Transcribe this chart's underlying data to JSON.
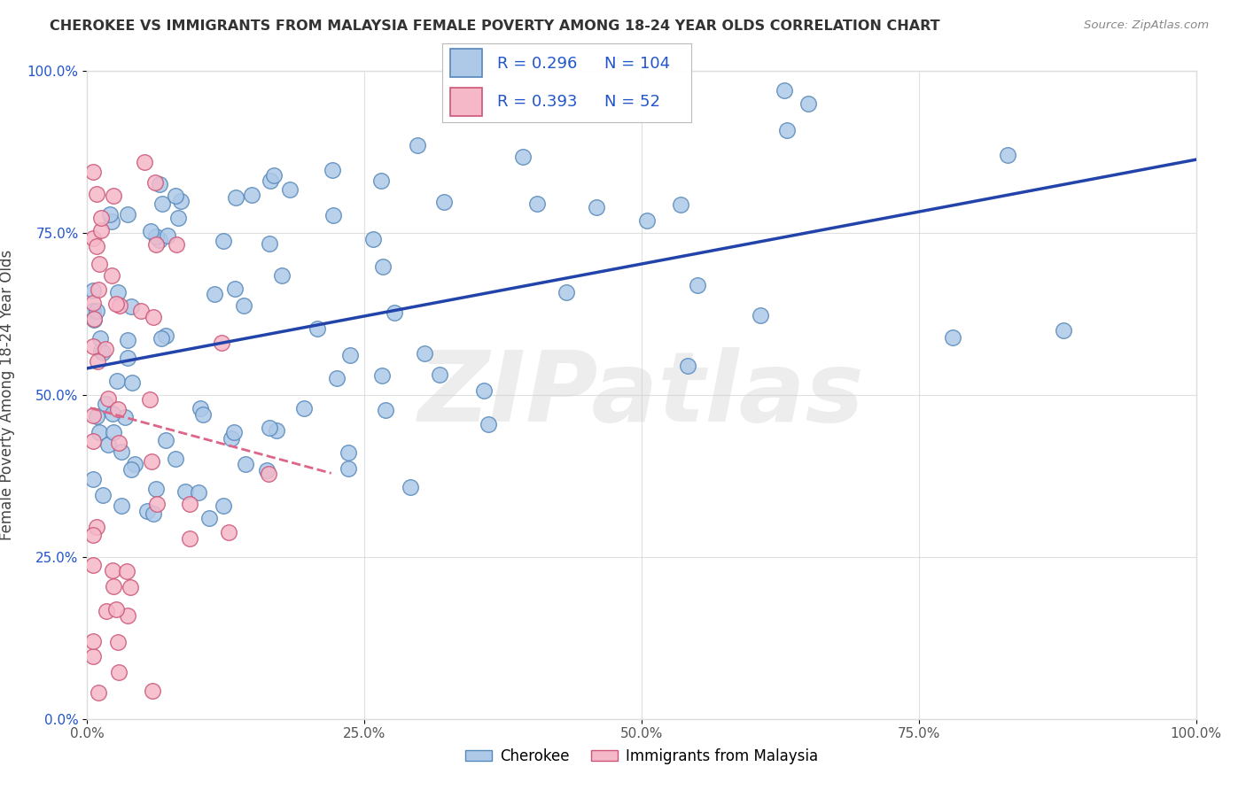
{
  "title": "CHEROKEE VS IMMIGRANTS FROM MALAYSIA FEMALE POVERTY AMONG 18-24 YEAR OLDS CORRELATION CHART",
  "source": "Source: ZipAtlas.com",
  "ylabel": "Female Poverty Among 18-24 Year Olds",
  "xlim": [
    0,
    1
  ],
  "ylim": [
    0,
    1
  ],
  "xtick_vals": [
    0,
    0.25,
    0.5,
    0.75,
    1.0
  ],
  "ytick_vals": [
    0,
    0.25,
    0.5,
    0.75,
    1.0
  ],
  "xtick_labels": [
    "0.0%",
    "25.0%",
    "50.0%",
    "75.0%",
    "100.0%"
  ],
  "ytick_labels": [
    "0.0%",
    "25.0%",
    "50.0%",
    "75.0%",
    "100.0%"
  ],
  "cherokee_face": "#aec9e8",
  "cherokee_edge": "#5588bb",
  "malaysia_face": "#f5b8c8",
  "malaysia_edge": "#cc5577",
  "trend_blue": "#2244aa",
  "trend_pink": "#dd6688",
  "R_cherokee": 0.296,
  "N_cherokee": 104,
  "R_malaysia": 0.393,
  "N_malaysia": 52,
  "watermark": "ZIPatlas",
  "legend_label_1": "Cherokee",
  "legend_label_2": "Immigrants from Malaysia",
  "label_color": "#2255cc",
  "scatter_size": 160
}
